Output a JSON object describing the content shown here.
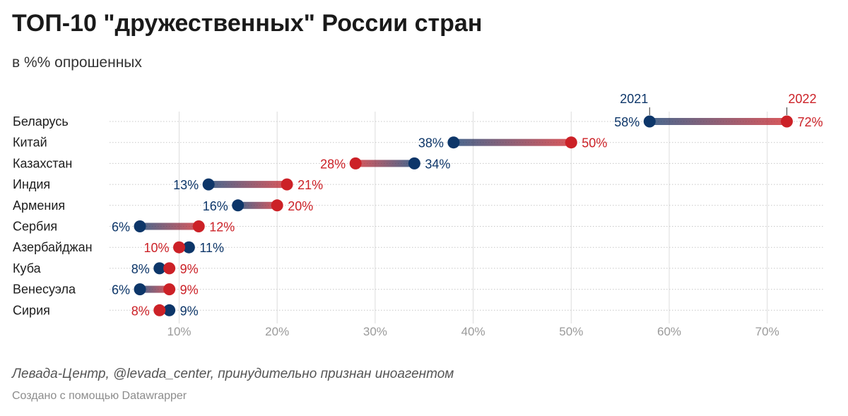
{
  "title": "ТОП-10 \"дружественных\" России стран",
  "subtitle": "в %% опрошенных",
  "footer": {
    "source": "Левада-Центр, @levada_center, принудительно признан иноагентом",
    "credit": "Создано с помощью Datawrapper"
  },
  "colors": {
    "y2021": "#0d3669",
    "y2022": "#cc2127",
    "grid": "#dddddd",
    "tick": "#9a9a9a"
  },
  "chart_data": {
    "type": "dumbbell",
    "title": "ТОП-10 \"дружественных\" России стран",
    "subtitle": "в %% опрошенных",
    "xlim": [
      3,
      76
    ],
    "x_ticks": [
      10,
      20,
      30,
      40,
      50,
      60,
      70
    ],
    "x_tick_labels": [
      "10%",
      "20%",
      "30%",
      "40%",
      "50%",
      "60%",
      "70%"
    ],
    "series_names": [
      "2021",
      "2022"
    ],
    "categories": [
      "Беларусь",
      "Китай",
      "Казахстан",
      "Индия",
      "Армения",
      "Сербия",
      "Азербайджан",
      "Куба",
      "Венесуэла",
      "Сирия"
    ],
    "series": [
      {
        "name": "2021",
        "values": [
          58,
          38,
          34,
          13,
          16,
          6,
          11,
          8,
          6,
          9
        ],
        "labels": [
          "58%",
          "38%",
          "34%",
          "13%",
          "16%",
          "6%",
          "11%",
          "8%",
          "6%",
          "9%"
        ]
      },
      {
        "name": "2022",
        "values": [
          72,
          50,
          28,
          21,
          20,
          12,
          10,
          9,
          9,
          8
        ],
        "labels": [
          "72%",
          "50%",
          "28%",
          "21%",
          "20%",
          "12%",
          "10%",
          "9%",
          "9%",
          "8%"
        ]
      }
    ]
  }
}
